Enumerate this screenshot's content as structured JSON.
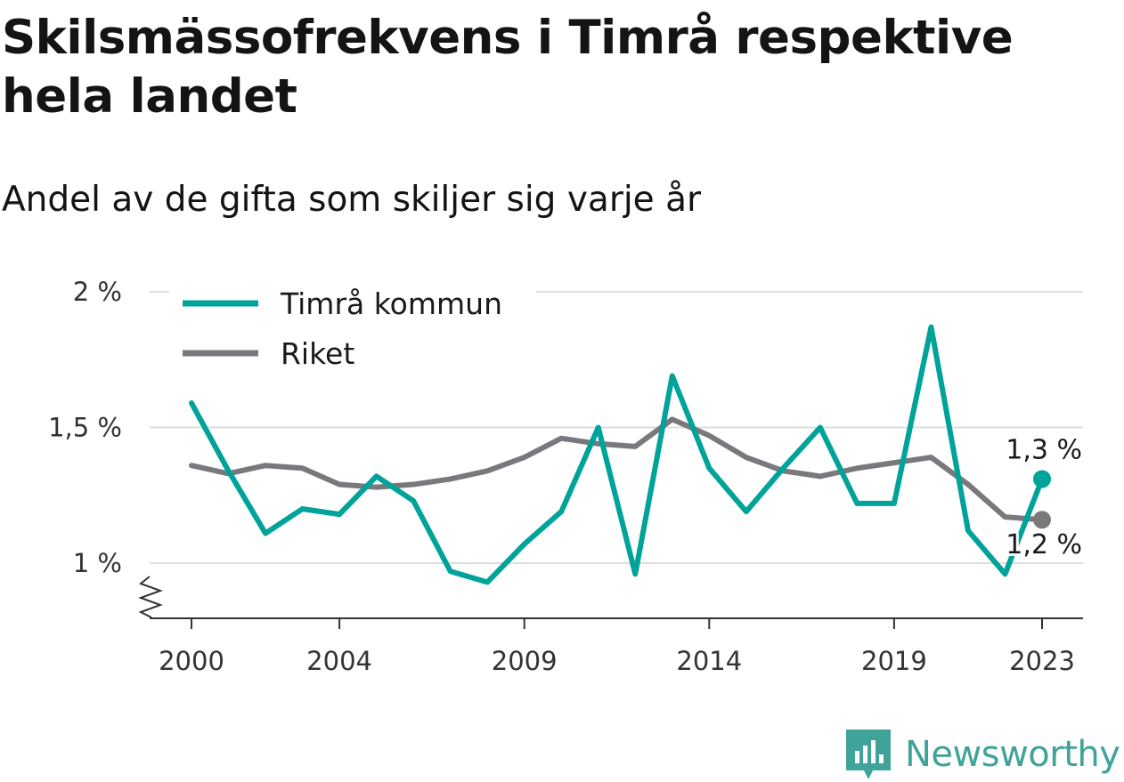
{
  "header": {
    "title": "Skilsmässofrekvens i Timrå respektive hela landet",
    "subtitle": "Andel av de gifta som skiljer sig varje år"
  },
  "brand": {
    "name": "Newsworthy",
    "color": "#3fa39a",
    "icon": "newsworthy-logo-icon"
  },
  "chart_data": {
    "type": "line",
    "x": [
      2000,
      2001,
      2002,
      2003,
      2004,
      2005,
      2006,
      2007,
      2008,
      2009,
      2010,
      2011,
      2012,
      2013,
      2014,
      2015,
      2016,
      2017,
      2018,
      2019,
      2020,
      2021,
      2022,
      2023
    ],
    "series": [
      {
        "name": "Timrå kommun",
        "color": "#00a39a",
        "values": [
          1.59,
          1.34,
          1.11,
          1.2,
          1.18,
          1.32,
          1.23,
          0.97,
          0.93,
          1.07,
          1.19,
          1.5,
          0.96,
          1.69,
          1.35,
          1.19,
          1.35,
          1.5,
          1.22,
          1.22,
          1.87,
          1.12,
          0.96,
          1.31
        ]
      },
      {
        "name": "Riket",
        "color": "#7a787d",
        "values": [
          1.36,
          1.33,
          1.36,
          1.35,
          1.29,
          1.28,
          1.29,
          1.31,
          1.34,
          1.39,
          1.46,
          1.44,
          1.43,
          1.53,
          1.47,
          1.39,
          1.34,
          1.32,
          1.35,
          1.37,
          1.39,
          1.29,
          1.17,
          1.16
        ]
      }
    ],
    "end_labels": [
      "1,3 %",
      "1,2 %"
    ],
    "x_tick_values": [
      2000,
      2004,
      2009,
      2014,
      2019,
      2023
    ],
    "x_tick_labels": [
      "2000",
      "2004",
      "2009",
      "2014",
      "2019",
      "2023"
    ],
    "y_tick_values": [
      1,
      1.5,
      2
    ],
    "y_tick_labels": [
      "1 %",
      "1,5 %",
      "2 %"
    ],
    "ylim": [
      0.79,
      2.0
    ],
    "xlim": [
      2000,
      2023
    ],
    "y_axis_break": true,
    "grid": "horizontal",
    "legend_position": "top-left",
    "xlabel": "",
    "ylabel": ""
  }
}
